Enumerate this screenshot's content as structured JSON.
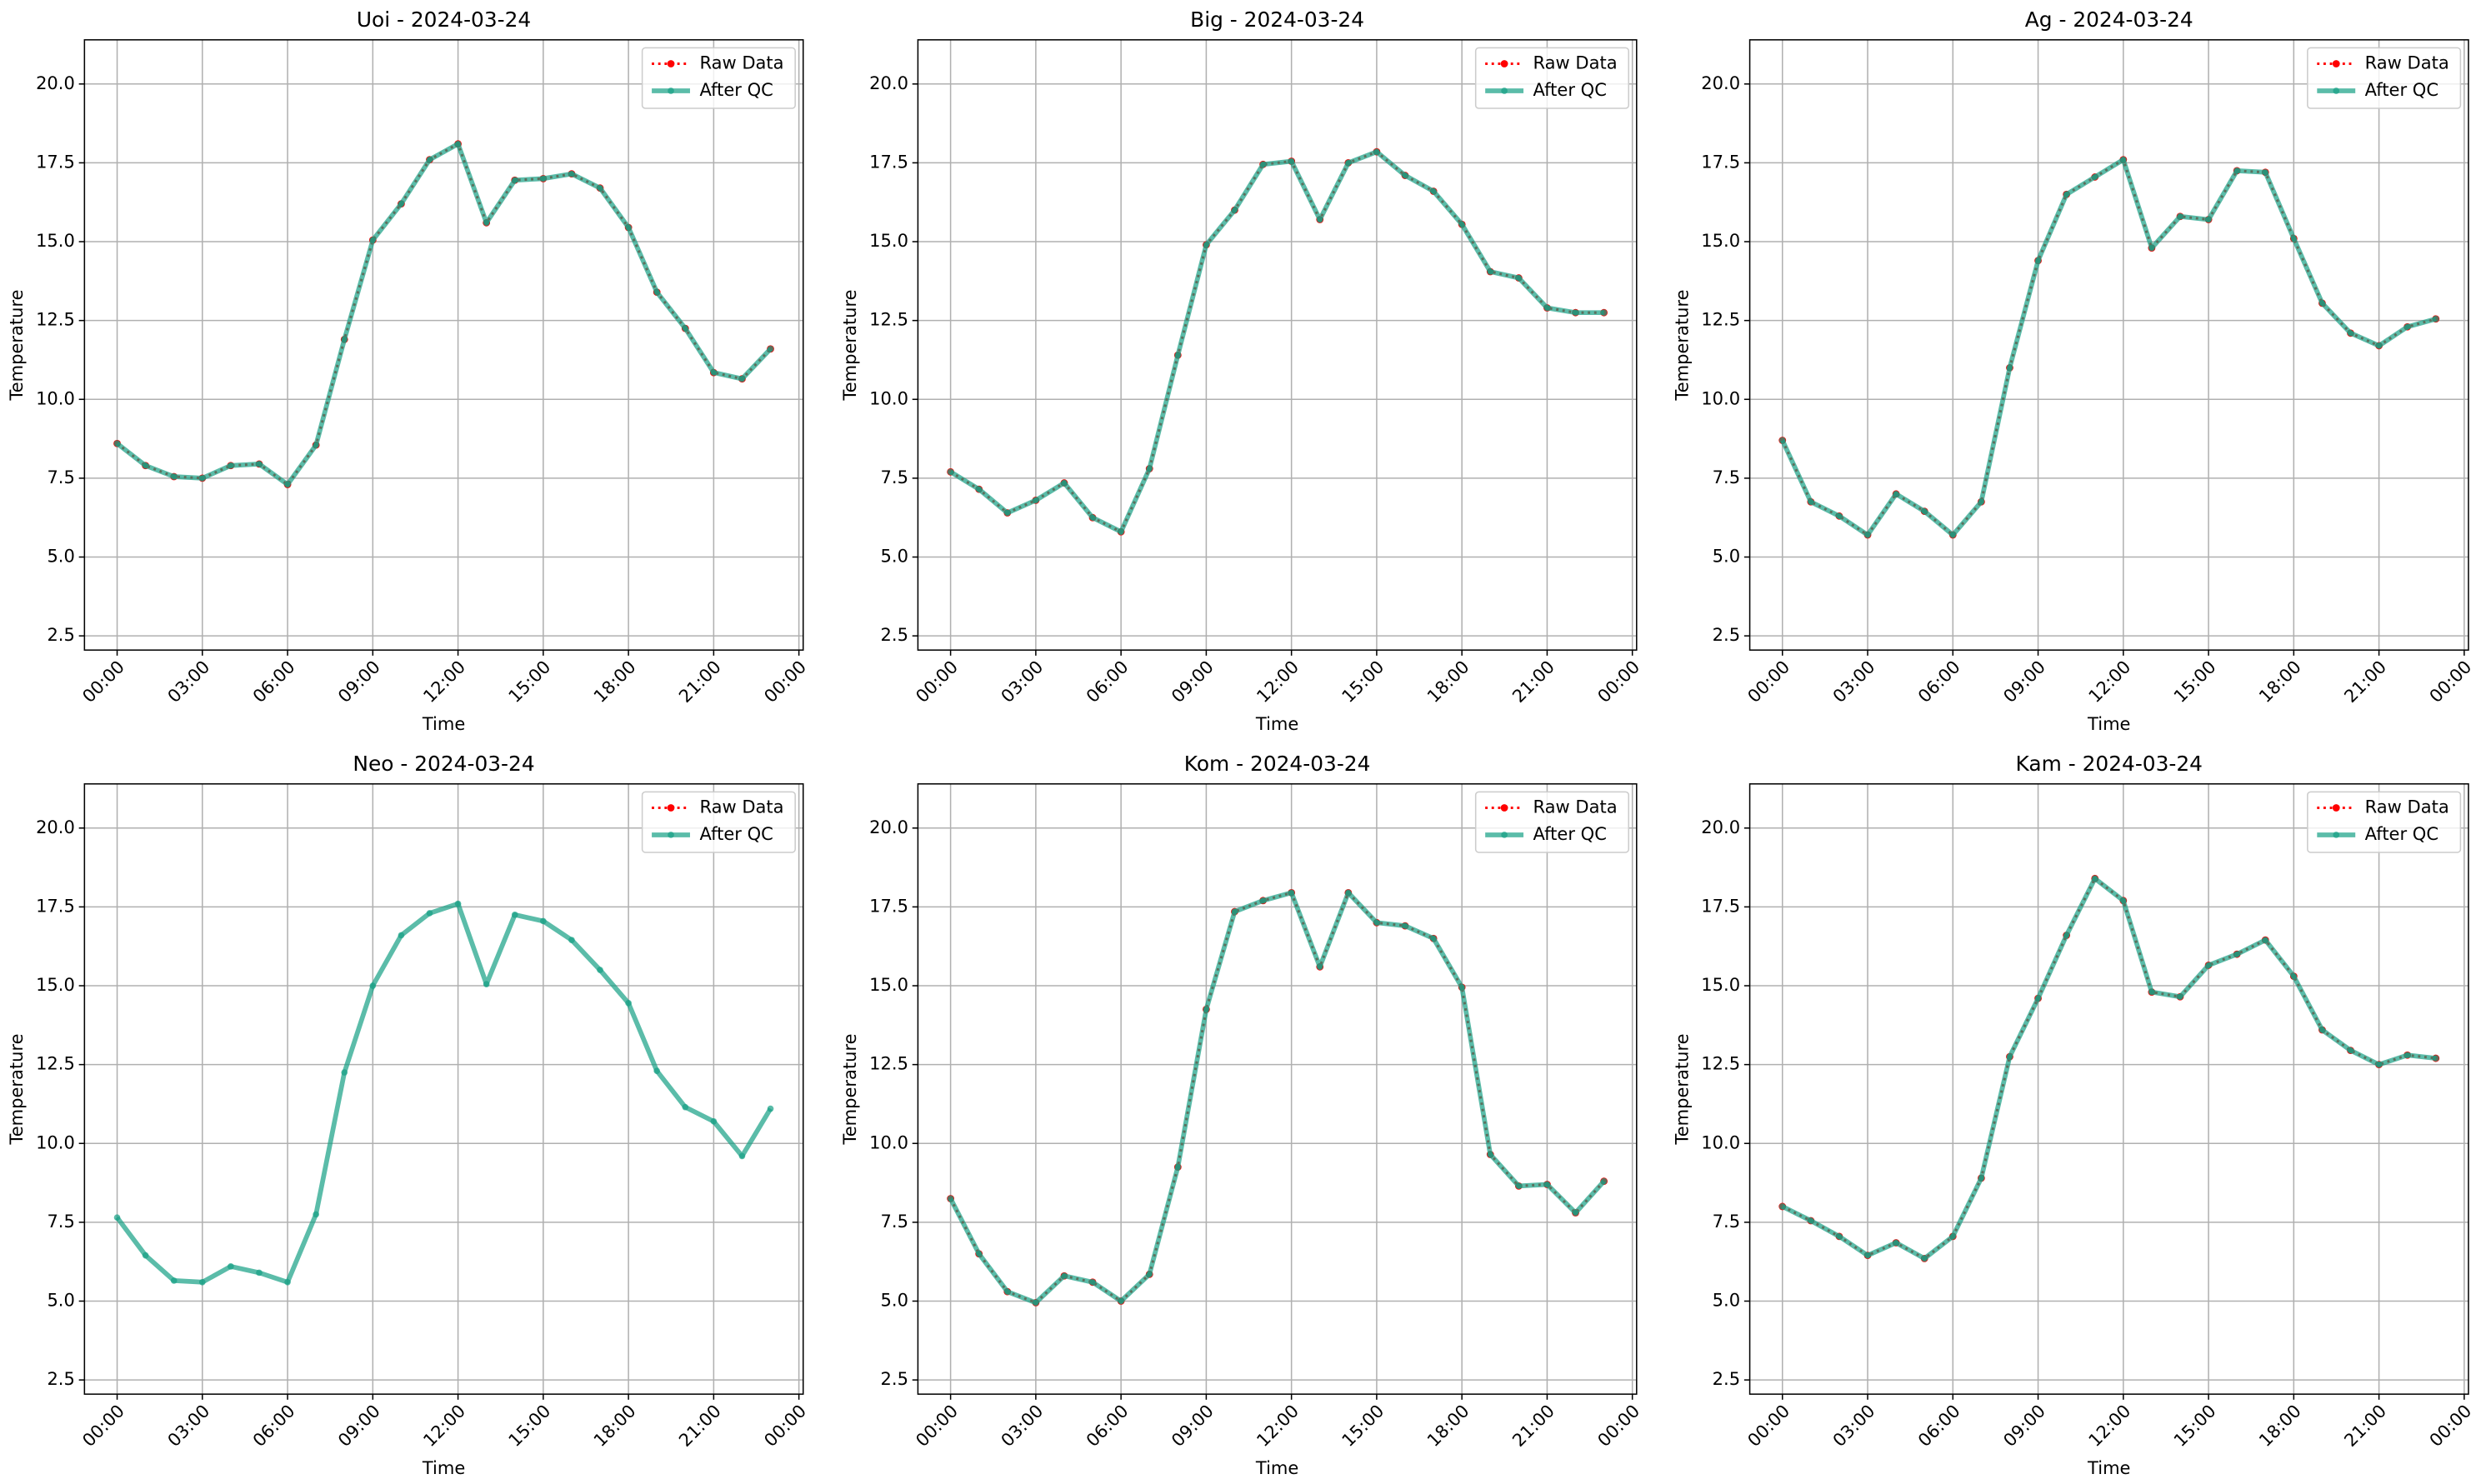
{
  "chart_data": [
    {
      "type": "line",
      "title": "Uoi - 2024-03-24",
      "xlabel": "Time",
      "ylabel": "Temperature",
      "x": [
        0,
        1,
        2,
        3,
        4,
        5,
        6,
        7,
        8,
        9,
        10,
        11,
        12,
        13,
        14,
        15,
        16,
        17,
        18,
        19,
        20,
        21,
        22,
        23
      ],
      "series": [
        {
          "name": "Raw Data",
          "color": "#ff0000",
          "values": [
            8.6,
            7.9,
            7.55,
            7.5,
            7.9,
            7.95,
            7.3,
            8.55,
            11.9,
            15.05,
            16.2,
            17.6,
            18.1,
            15.6,
            16.95,
            17.0,
            17.15,
            16.7,
            15.45,
            13.4,
            12.25,
            10.85,
            10.65,
            11.6
          ]
        },
        {
          "name": "After QC",
          "color": "#16a085",
          "values": [
            8.6,
            7.9,
            7.55,
            7.5,
            7.9,
            7.95,
            7.3,
            8.55,
            11.9,
            15.05,
            16.2,
            17.6,
            18.1,
            15.6,
            16.95,
            17.0,
            17.15,
            16.7,
            15.45,
            13.4,
            12.25,
            10.85,
            10.65,
            11.6
          ]
        }
      ],
      "xlim": [
        -1.15,
        24.15
      ],
      "ylim": [
        2.05,
        21.4
      ],
      "xticks": [
        {
          "value": 0,
          "label": "00:00"
        },
        {
          "value": 3,
          "label": "03:00"
        },
        {
          "value": 6,
          "label": "06:00"
        },
        {
          "value": 9,
          "label": "09:00"
        },
        {
          "value": 12,
          "label": "12:00"
        },
        {
          "value": 15,
          "label": "15:00"
        },
        {
          "value": 18,
          "label": "18:00"
        },
        {
          "value": 21,
          "label": "21:00"
        },
        {
          "value": 24,
          "label": "00:00"
        }
      ],
      "yticks": [
        2.5,
        {
          "value": 5,
          "label": "5.0"
        },
        7.5,
        {
          "value": 10,
          "label": "10.0"
        },
        12.5,
        {
          "value": 15,
          "label": "15.0"
        },
        17.5,
        {
          "value": 20,
          "label": "20.0"
        }
      ],
      "grid": true,
      "legend": "upper right"
    },
    {
      "type": "line",
      "title": "Big - 2024-03-24",
      "xlabel": "Time",
      "ylabel": "Temperature",
      "x": [
        0,
        1,
        2,
        3,
        4,
        5,
        6,
        7,
        8,
        9,
        10,
        11,
        12,
        13,
        14,
        15,
        16,
        17,
        18,
        19,
        20,
        21,
        22,
        23
      ],
      "series": [
        {
          "name": "Raw Data",
          "color": "#ff0000",
          "values": [
            7.7,
            7.15,
            6.4,
            6.8,
            7.35,
            6.25,
            5.8,
            7.8,
            11.4,
            14.9,
            16.0,
            17.45,
            17.55,
            15.7,
            17.5,
            17.85,
            17.1,
            16.6,
            15.55,
            14.05,
            13.85,
            12.9,
            12.75,
            12.75
          ]
        },
        {
          "name": "After QC",
          "color": "#16a085",
          "values": [
            7.7,
            7.15,
            6.4,
            6.8,
            7.35,
            6.25,
            5.8,
            7.8,
            11.4,
            14.9,
            16.0,
            17.45,
            17.55,
            15.7,
            17.5,
            17.85,
            17.1,
            16.6,
            15.55,
            14.05,
            13.85,
            12.9,
            12.75,
            12.75
          ]
        }
      ],
      "xlim": [
        -1.15,
        24.15
      ],
      "ylim": [
        2.05,
        21.4
      ],
      "xticks": [
        {
          "value": 0,
          "label": "00:00"
        },
        {
          "value": 3,
          "label": "03:00"
        },
        {
          "value": 6,
          "label": "06:00"
        },
        {
          "value": 9,
          "label": "09:00"
        },
        {
          "value": 12,
          "label": "12:00"
        },
        {
          "value": 15,
          "label": "15:00"
        },
        {
          "value": 18,
          "label": "18:00"
        },
        {
          "value": 21,
          "label": "21:00"
        },
        {
          "value": 24,
          "label": "00:00"
        }
      ],
      "yticks": [
        2.5,
        {
          "value": 5,
          "label": "5.0"
        },
        7.5,
        {
          "value": 10,
          "label": "10.0"
        },
        12.5,
        {
          "value": 15,
          "label": "15.0"
        },
        17.5,
        {
          "value": 20,
          "label": "20.0"
        }
      ],
      "grid": true,
      "legend": "upper right"
    },
    {
      "type": "line",
      "title": "Ag - 2024-03-24",
      "xlabel": "Time",
      "ylabel": "Temperature",
      "x": [
        0,
        1,
        2,
        3,
        4,
        5,
        6,
        7,
        8,
        9,
        10,
        11,
        12,
        13,
        14,
        15,
        16,
        17,
        18,
        19,
        20,
        21,
        22,
        23
      ],
      "series": [
        {
          "name": "Raw Data",
          "color": "#ff0000",
          "values": [
            8.7,
            6.75,
            6.3,
            5.7,
            7.0,
            6.45,
            5.7,
            6.75,
            11.0,
            14.4,
            16.5,
            17.05,
            17.6,
            14.8,
            15.8,
            15.7,
            17.25,
            17.2,
            15.1,
            13.05,
            12.1,
            11.7,
            12.3,
            12.55
          ]
        },
        {
          "name": "After QC",
          "color": "#16a085",
          "values": [
            8.7,
            6.75,
            6.3,
            5.7,
            7.0,
            6.45,
            5.7,
            6.75,
            11.0,
            14.4,
            16.5,
            17.05,
            17.6,
            14.8,
            15.8,
            15.7,
            17.25,
            17.2,
            15.1,
            13.05,
            12.1,
            11.7,
            12.3,
            12.55
          ]
        }
      ],
      "xlim": [
        -1.15,
        24.15
      ],
      "ylim": [
        2.05,
        21.4
      ],
      "xticks": [
        {
          "value": 0,
          "label": "00:00"
        },
        {
          "value": 3,
          "label": "03:00"
        },
        {
          "value": 6,
          "label": "06:00"
        },
        {
          "value": 9,
          "label": "09:00"
        },
        {
          "value": 12,
          "label": "12:00"
        },
        {
          "value": 15,
          "label": "15:00"
        },
        {
          "value": 18,
          "label": "18:00"
        },
        {
          "value": 21,
          "label": "21:00"
        },
        {
          "value": 24,
          "label": "00:00"
        }
      ],
      "yticks": [
        2.5,
        {
          "value": 5,
          "label": "5.0"
        },
        7.5,
        {
          "value": 10,
          "label": "10.0"
        },
        12.5,
        {
          "value": 15,
          "label": "15.0"
        },
        17.5,
        {
          "value": 20,
          "label": "20.0"
        }
      ],
      "grid": true,
      "legend": "upper right"
    },
    {
      "type": "line",
      "title": "Neo - 2024-03-24",
      "xlabel": "Time",
      "ylabel": "Temperature",
      "x": [
        0,
        1,
        2,
        3,
        4,
        5,
        6,
        7,
        8,
        9,
        10,
        11,
        12,
        13,
        14,
        15,
        16,
        17,
        18,
        19,
        20,
        21,
        22,
        23
      ],
      "series": [
        {
          "name": "Raw Data",
          "color": "#ff0000",
          "values": [
            null,
            null,
            null,
            null,
            null,
            null,
            null,
            null,
            null,
            null,
            null,
            null,
            null,
            null,
            null,
            null,
            null,
            null,
            null,
            null,
            null,
            null,
            null,
            null
          ]
        },
        {
          "name": "After QC",
          "color": "#16a085",
          "values": [
            7.65,
            6.45,
            5.65,
            5.6,
            6.1,
            5.9,
            5.6,
            7.75,
            12.25,
            15.0,
            16.6,
            17.3,
            17.6,
            15.05,
            17.25,
            17.05,
            16.45,
            15.5,
            14.45,
            12.3,
            11.15,
            10.7,
            9.6,
            11.1
          ]
        }
      ],
      "xlim": [
        -1.15,
        24.15
      ],
      "ylim": [
        2.05,
        21.4
      ],
      "xticks": [
        {
          "value": 0,
          "label": "00:00"
        },
        {
          "value": 3,
          "label": "03:00"
        },
        {
          "value": 6,
          "label": "06:00"
        },
        {
          "value": 9,
          "label": "09:00"
        },
        {
          "value": 12,
          "label": "12:00"
        },
        {
          "value": 15,
          "label": "15:00"
        },
        {
          "value": 18,
          "label": "18:00"
        },
        {
          "value": 21,
          "label": "21:00"
        },
        {
          "value": 24,
          "label": "00:00"
        }
      ],
      "yticks": [
        2.5,
        {
          "value": 5,
          "label": "5.0"
        },
        7.5,
        {
          "value": 10,
          "label": "10.0"
        },
        12.5,
        {
          "value": 15,
          "label": "15.0"
        },
        17.5,
        {
          "value": 20,
          "label": "20.0"
        }
      ],
      "grid": true,
      "legend": "upper right"
    },
    {
      "type": "line",
      "title": "Kom - 2024-03-24",
      "xlabel": "Time",
      "ylabel": "Temperature",
      "x": [
        0,
        1,
        2,
        3,
        4,
        5,
        6,
        7,
        8,
        9,
        10,
        11,
        12,
        13,
        14,
        15,
        16,
        17,
        18,
        19,
        20,
        21,
        22,
        23
      ],
      "series": [
        {
          "name": "Raw Data",
          "color": "#ff0000",
          "values": [
            8.25,
            6.5,
            5.3,
            4.95,
            5.8,
            5.6,
            5.0,
            5.85,
            9.25,
            14.25,
            17.35,
            17.7,
            17.95,
            15.6,
            17.95,
            17.0,
            16.9,
            16.5,
            14.95,
            9.65,
            8.65,
            8.7,
            7.8,
            8.8
          ]
        },
        {
          "name": "After QC",
          "color": "#16a085",
          "values": [
            8.25,
            6.5,
            5.3,
            4.95,
            5.8,
            5.6,
            5.0,
            5.85,
            9.25,
            14.25,
            17.35,
            17.7,
            17.95,
            15.6,
            17.95,
            17.0,
            16.9,
            16.5,
            14.95,
            9.65,
            8.65,
            8.7,
            7.8,
            8.8
          ]
        }
      ],
      "xlim": [
        -1.15,
        24.15
      ],
      "ylim": [
        2.05,
        21.4
      ],
      "xticks": [
        {
          "value": 0,
          "label": "00:00"
        },
        {
          "value": 3,
          "label": "03:00"
        },
        {
          "value": 6,
          "label": "06:00"
        },
        {
          "value": 9,
          "label": "09:00"
        },
        {
          "value": 12,
          "label": "12:00"
        },
        {
          "value": 15,
          "label": "15:00"
        },
        {
          "value": 18,
          "label": "18:00"
        },
        {
          "value": 21,
          "label": "21:00"
        },
        {
          "value": 24,
          "label": "00:00"
        }
      ],
      "yticks": [
        2.5,
        {
          "value": 5,
          "label": "5.0"
        },
        7.5,
        {
          "value": 10,
          "label": "10.0"
        },
        12.5,
        {
          "value": 15,
          "label": "15.0"
        },
        17.5,
        {
          "value": 20,
          "label": "20.0"
        }
      ],
      "grid": true,
      "legend": "upper right"
    },
    {
      "type": "line",
      "title": "Kam - 2024-03-24",
      "xlabel": "Time",
      "ylabel": "Temperature",
      "x": [
        0,
        1,
        2,
        3,
        4,
        5,
        6,
        7,
        8,
        9,
        10,
        11,
        12,
        13,
        14,
        15,
        16,
        17,
        18,
        19,
        20,
        21,
        22,
        23
      ],
      "series": [
        {
          "name": "Raw Data",
          "color": "#ff0000",
          "values": [
            8.0,
            7.55,
            7.05,
            6.45,
            6.85,
            6.35,
            7.05,
            8.9,
            12.75,
            14.6,
            16.6,
            18.4,
            17.7,
            14.8,
            14.65,
            15.65,
            16.0,
            16.45,
            15.3,
            13.6,
            12.95,
            12.5,
            12.8,
            12.7
          ]
        },
        {
          "name": "After QC",
          "color": "#16a085",
          "values": [
            8.0,
            7.55,
            7.05,
            6.45,
            6.85,
            6.35,
            7.05,
            8.9,
            12.75,
            14.6,
            16.6,
            18.4,
            17.7,
            14.8,
            14.65,
            15.65,
            16.0,
            16.45,
            15.3,
            13.6,
            12.95,
            12.5,
            12.8,
            12.7
          ]
        }
      ],
      "xlim": [
        -1.15,
        24.15
      ],
      "ylim": [
        2.05,
        21.4
      ],
      "xticks": [
        {
          "value": 0,
          "label": "00:00"
        },
        {
          "value": 3,
          "label": "03:00"
        },
        {
          "value": 6,
          "label": "06:00"
        },
        {
          "value": 9,
          "label": "09:00"
        },
        {
          "value": 12,
          "label": "12:00"
        },
        {
          "value": 15,
          "label": "15:00"
        },
        {
          "value": 18,
          "label": "18:00"
        },
        {
          "value": 21,
          "label": "21:00"
        },
        {
          "value": 24,
          "label": "00:00"
        }
      ],
      "yticks": [
        2.5,
        {
          "value": 5,
          "label": "5.0"
        },
        7.5,
        {
          "value": 10,
          "label": "10.0"
        },
        12.5,
        {
          "value": 15,
          "label": "15.0"
        },
        17.5,
        {
          "value": 20,
          "label": "20.0"
        }
      ],
      "grid": true,
      "legend": "upper right"
    }
  ]
}
